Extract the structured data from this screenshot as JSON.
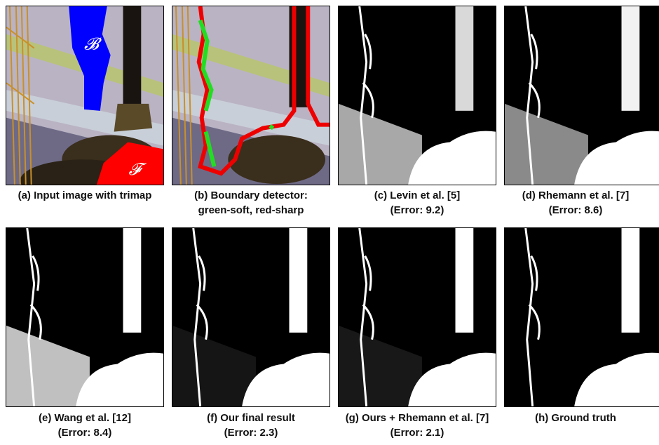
{
  "panels": [
    {
      "id": "a",
      "caption_line1": "(a) Input image with trimap",
      "caption_line2": "",
      "label_B": "𝓑",
      "label_F": "𝓕"
    },
    {
      "id": "b",
      "caption_line1": "(b) Boundary detector:",
      "caption_line2": "green-soft, red-sharp"
    },
    {
      "id": "c",
      "caption_line1": "(c) Levin et al. [5]",
      "caption_line2": "(Error: 9.2)"
    },
    {
      "id": "d",
      "caption_line1": "(d) Rhemann et al. [7]",
      "caption_line2": "(Error: 8.6)"
    },
    {
      "id": "e",
      "caption_line1": "(e) Wang et al. [12]",
      "caption_line2": "(Error: 8.4)"
    },
    {
      "id": "f",
      "caption_line1": "(f) Our final result",
      "caption_line2": "(Error: 2.3)"
    },
    {
      "id": "g",
      "caption_line1": "(g) Ours + Rhemann et al. [7]",
      "caption_line2": "(Error: 2.1)"
    },
    {
      "id": "h",
      "caption_line1": "(h) Ground truth",
      "caption_line2": ""
    }
  ],
  "colors": {
    "background_region": "#0000ff",
    "foreground_region": "#ff0000",
    "soft_boundary": "#22dd22",
    "sharp_boundary": "#ee0000"
  }
}
